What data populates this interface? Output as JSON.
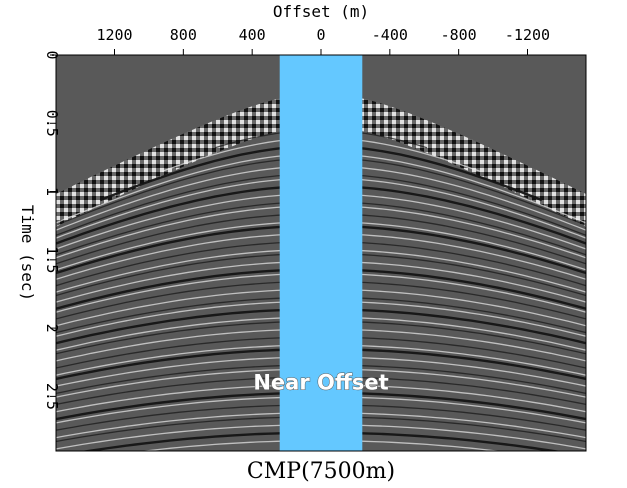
{
  "chart_data": {
    "type": "heatmap",
    "xlabel": "Offset (m)",
    "ylabel": "Time (sec)",
    "x_ticks": [
      1200,
      800,
      400,
      0,
      -400,
      -800,
      -1200
    ],
    "x_tick_labels": [
      "1200",
      "800",
      "400",
      "0",
      "-400",
      "-800",
      "-1200"
    ],
    "y_ticks": [
      0,
      0.5,
      1,
      1.5,
      2,
      2.5
    ],
    "y_tick_labels": [
      "0",
      "0.5",
      "1",
      "1.5",
      "2",
      "2.5"
    ],
    "xlim": [
      1540,
      -1540
    ],
    "ylim": [
      0,
      2.9
    ],
    "x_axis_position": "top",
    "highlight": {
      "label": "Near Offset",
      "x_range": [
        240,
        -240
      ],
      "color": "#64c8ff"
    },
    "background_color": "#595959",
    "caption": "CMP(7500m)"
  }
}
